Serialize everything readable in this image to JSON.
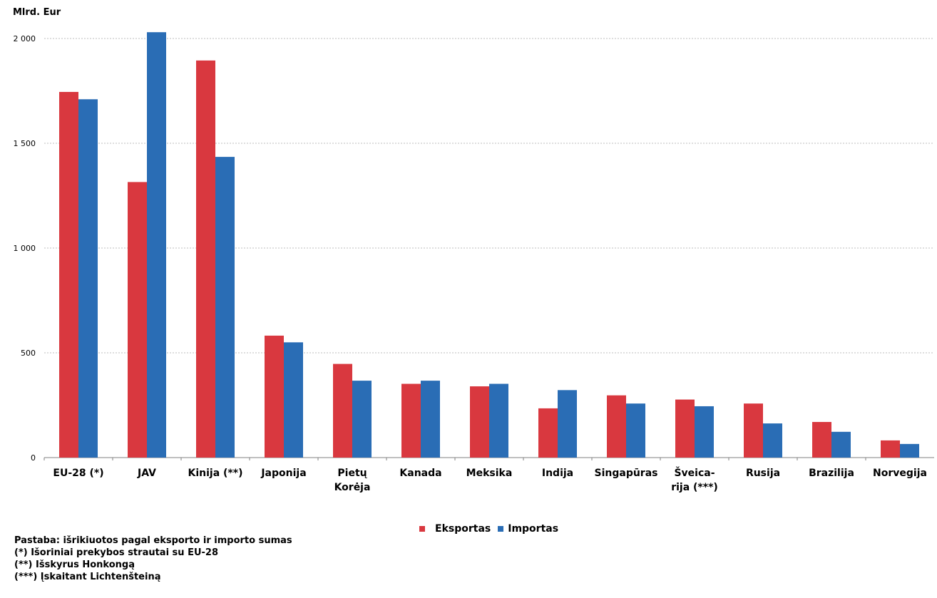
{
  "chart_data": {
    "type": "bar",
    "ylabel": "Mlrd. Eur",
    "ylim": [
      0,
      2000
    ],
    "yticks": [
      0,
      500,
      1000,
      1500,
      2000
    ],
    "ytick_labels": [
      "0",
      "500",
      "1 000",
      "1 500",
      "2 000"
    ],
    "grid": true,
    "categories": [
      [
        "EU-28 (*)"
      ],
      [
        "JAV"
      ],
      [
        "Kinija (**)"
      ],
      [
        "Japonija"
      ],
      [
        "Pietų",
        "Korėja"
      ],
      [
        "Kanada"
      ],
      [
        "Meksika"
      ],
      [
        "Indija"
      ],
      [
        "Singapūras"
      ],
      [
        "Šveica-",
        "rija (***)"
      ],
      [
        "Rusija"
      ],
      [
        "Brazilija"
      ],
      [
        "Norvegija"
      ]
    ],
    "series": [
      {
        "name": "Eksportas",
        "color": "#d9383f",
        "values": [
          1745,
          1315,
          1895,
          582,
          447,
          352,
          340,
          235,
          297,
          277,
          258,
          170,
          82
        ]
      },
      {
        "name": "Importas",
        "color": "#2a6db5",
        "values": [
          1710,
          2030,
          1435,
          550,
          367,
          367,
          352,
          322,
          258,
          245,
          163,
          123,
          65
        ]
      }
    ],
    "legend_position": "bottom"
  },
  "notes": [
    "Pastaba: išrikiuotos pagal eksporto ir importo sumas",
    "(*) Išoriniai prekybos strautai su EU-28",
    "(**) Išskyrus Honkongą",
    "(***) Įskaitant Lichtenšteiną"
  ]
}
